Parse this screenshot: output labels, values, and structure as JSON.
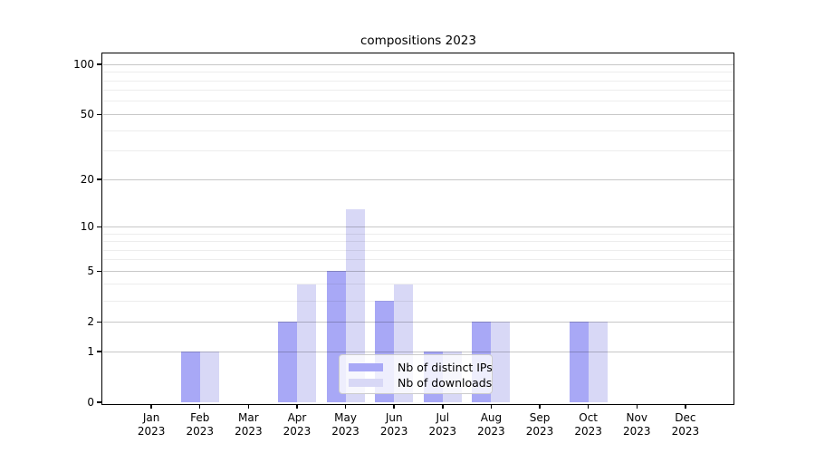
{
  "title": "compositions 2023",
  "chart_data": {
    "type": "bar",
    "title": "compositions 2023",
    "categories": [
      "Jan 2023",
      "Feb 2023",
      "Mar 2023",
      "Apr 2023",
      "May 2023",
      "Jun 2023",
      "Jul 2023",
      "Aug 2023",
      "Sep 2023",
      "Oct 2023",
      "Nov 2023",
      "Dec 2023"
    ],
    "x_axis": {
      "months": [
        "Jan",
        "Feb",
        "Mar",
        "Apr",
        "May",
        "Jun",
        "Jul",
        "Aug",
        "Sep",
        "Oct",
        "Nov",
        "Dec"
      ],
      "year_label": "2023"
    },
    "series": [
      {
        "name": "Nb of distinct IPs",
        "color": "#a8a8f6",
        "values": [
          0,
          1,
          0,
          2,
          5,
          3,
          1,
          2,
          0,
          2,
          0,
          0
        ]
      },
      {
        "name": "Nb of downloads",
        "color": "#d8d8f6",
        "values": [
          0,
          1,
          0,
          4,
          13,
          4,
          1,
          2,
          0,
          2,
          0,
          0
        ]
      }
    ],
    "yscale": "log1p",
    "ylim": [
      0,
      115
    ],
    "yticks": [
      0,
      1,
      2,
      5,
      10,
      20,
      50,
      100
    ],
    "minor_gridlines": [
      3,
      4,
      6,
      7,
      8,
      9,
      30,
      40,
      60,
      70,
      80,
      90
    ],
    "grid": true,
    "grid_above_bars": true,
    "legend_position": "lower center",
    "background_color": "#ffffff",
    "axis_color": "#000000"
  }
}
